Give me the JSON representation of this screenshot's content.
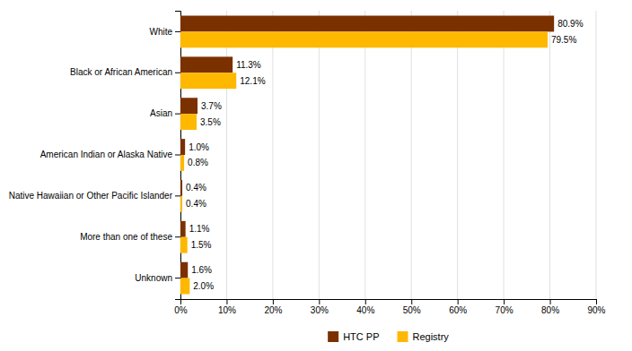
{
  "chart_data": {
    "type": "bar",
    "orientation": "horizontal",
    "categories": [
      "White",
      "Black or African American",
      "Asian",
      "American Indian or Alaska Native",
      "Native Hawaiian or Other Pacific Islander",
      "More than one of these",
      "Unknown"
    ],
    "series": [
      {
        "name": "HTC PP",
        "color": "#7B3000",
        "values": [
          80.9,
          11.3,
          3.7,
          1.0,
          0.4,
          1.1,
          1.6
        ],
        "value_labels": [
          "80.9%",
          "11.3%",
          "3.7%",
          "1.0%",
          "0.4%",
          "1.1%",
          "1.6%"
        ]
      },
      {
        "name": "Registry",
        "color": "#FFB800",
        "values": [
          79.5,
          12.1,
          3.5,
          0.8,
          0.4,
          1.5,
          2.0
        ],
        "value_labels": [
          "79.5%",
          "12.1%",
          "3.5%",
          "0.8%",
          "0.4%",
          "1.5%",
          "2.0%"
        ]
      }
    ],
    "xlim": [
      0,
      90
    ],
    "xticks": [
      {
        "value": 0,
        "label": "0%"
      },
      {
        "value": 10,
        "label": "10%"
      },
      {
        "value": 20,
        "label": "20%"
      },
      {
        "value": 30,
        "label": "30%"
      },
      {
        "value": 40,
        "label": "40%"
      },
      {
        "value": 50,
        "label": "50%"
      },
      {
        "value": 60,
        "label": "60%"
      },
      {
        "value": 70,
        "label": "70%"
      },
      {
        "value": 80,
        "label": "80%"
      },
      {
        "value": 90,
        "label": "90%"
      }
    ],
    "grid": true,
    "data_labels": true,
    "legend": "bottom"
  }
}
